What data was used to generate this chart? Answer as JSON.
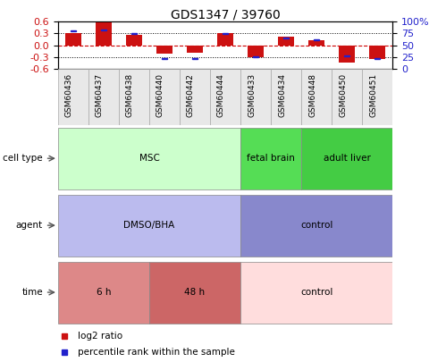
{
  "title": "GDS1347 / 39760",
  "samples": [
    "GSM60436",
    "GSM60437",
    "GSM60438",
    "GSM60440",
    "GSM60442",
    "GSM60444",
    "GSM60433",
    "GSM60434",
    "GSM60448",
    "GSM60450",
    "GSM60451"
  ],
  "log2_ratio": [
    0.32,
    0.6,
    0.27,
    -0.22,
    -0.18,
    0.3,
    -0.3,
    0.22,
    0.12,
    -0.45,
    -0.36
  ],
  "percentile": [
    80,
    82,
    75,
    22,
    21,
    75,
    26,
    65,
    62,
    27,
    22
  ],
  "ylim": [
    -0.6,
    0.6
  ],
  "yticks_left": [
    -0.6,
    -0.3,
    0.0,
    0.3,
    0.6
  ],
  "yticks_right": [
    0,
    25,
    50,
    75,
    100
  ],
  "bar_color": "#cc1111",
  "pct_color": "#2222cc",
  "bar_width": 0.55,
  "cell_type_groups": [
    {
      "label": "MSC",
      "span": [
        0,
        6
      ],
      "color": "#ccffcc"
    },
    {
      "label": "fetal brain",
      "span": [
        6,
        8
      ],
      "color": "#55dd55"
    },
    {
      "label": "adult liver",
      "span": [
        8,
        11
      ],
      "color": "#44cc44"
    }
  ],
  "agent_groups": [
    {
      "label": "DMSO/BHA",
      "span": [
        0,
        6
      ],
      "color": "#bbbbee"
    },
    {
      "label": "control",
      "span": [
        6,
        11
      ],
      "color": "#8888cc"
    }
  ],
  "time_groups": [
    {
      "label": "6 h",
      "span": [
        0,
        3
      ],
      "color": "#dd8888"
    },
    {
      "label": "48 h",
      "span": [
        3,
        6
      ],
      "color": "#cc6666"
    },
    {
      "label": "control",
      "span": [
        6,
        11
      ],
      "color": "#ffdddd"
    }
  ],
  "legend_items": [
    {
      "label": "log2 ratio",
      "color": "#cc1111"
    },
    {
      "label": "percentile rank within the sample",
      "color": "#2222cc"
    }
  ],
  "dotted_color": "#000000",
  "zero_dashed_color": "#cc0000",
  "tick_label_color_left": "#cc1111",
  "tick_label_color_right": "#2222cc"
}
